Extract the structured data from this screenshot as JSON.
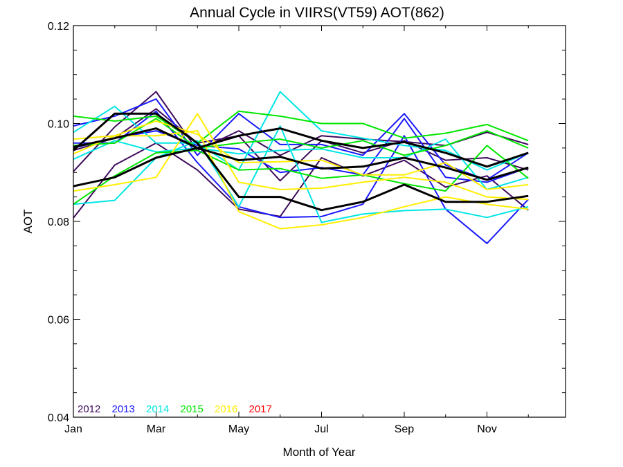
{
  "chart_data": {
    "type": "line",
    "title": "Annual Cycle in VIIRS(VT59) AOT(862)",
    "xlabel": "Month of Year",
    "ylabel": "AOT",
    "x": [
      1,
      2,
      3,
      4,
      5,
      6,
      7,
      8,
      9,
      10,
      11,
      12
    ],
    "xlim": [
      1,
      12.9
    ],
    "ylim": [
      0.04,
      0.12
    ],
    "xticks": [
      {
        "value": 1,
        "label": "Jan"
      },
      {
        "value": 3,
        "label": "Mar"
      },
      {
        "value": 5,
        "label": "May"
      },
      {
        "value": 7,
        "label": "Jul"
      },
      {
        "value": 9,
        "label": "Sep"
      },
      {
        "value": 11,
        "label": "Nov"
      }
    ],
    "yticks": [
      {
        "value": 0.04,
        "label": "0.04"
      },
      {
        "value": 0.06,
        "label": "0.06"
      },
      {
        "value": 0.08,
        "label": "0.08"
      },
      {
        "value": 0.1,
        "label": "0.10"
      },
      {
        "value": 0.12,
        "label": "0.12"
      }
    ],
    "grid": false,
    "legend_position": "bottom-left",
    "legend": [
      {
        "label": "2012",
        "color": "#3d0a5c"
      },
      {
        "label": "2013",
        "color": "#1a1aff"
      },
      {
        "label": "2014",
        "color": "#00e5e5"
      },
      {
        "label": "2015",
        "color": "#00e600"
      },
      {
        "label": "2016",
        "color": "#ffee00"
      },
      {
        "label": "2017",
        "color": "#ff0000"
      }
    ],
    "series": [
      {
        "color": "#3d0a5c",
        "values": [
          0.0902,
          0.0993,
          0.1065,
          0.0945,
          0.0985,
          0.0935,
          0.0975,
          0.0968,
          0.0963,
          0.0955,
          0.0982,
          0.0957
        ]
      },
      {
        "color": "#3d0a5c",
        "values": [
          0.0807,
          0.0915,
          0.096,
          0.0905,
          0.0825,
          0.081,
          0.093,
          0.0893,
          0.0925,
          0.087,
          0.0893,
          0.0823
        ]
      },
      {
        "color": "#3d0a5c",
        "values": [
          0.0945,
          0.097,
          0.103,
          0.096,
          0.0975,
          0.0883,
          0.0965,
          0.094,
          0.0965,
          0.0925,
          0.093,
          0.0905
        ]
      },
      {
        "color": "#1a1aff",
        "values": [
          0.0995,
          0.1015,
          0.105,
          0.0935,
          0.102,
          0.0957,
          0.0957,
          0.0935,
          0.102,
          0.0915,
          0.0885,
          0.094
        ]
      },
      {
        "color": "#1a1aff",
        "values": [
          0.096,
          0.096,
          0.1025,
          0.092,
          0.083,
          0.0808,
          0.081,
          0.0835,
          0.0975,
          0.0825,
          0.0755,
          0.0845
        ]
      },
      {
        "color": "#1a1aff",
        "values": [
          0.095,
          0.097,
          0.0985,
          0.0955,
          0.0948,
          0.09,
          0.091,
          0.0895,
          0.101,
          0.089,
          0.088,
          0.091
        ]
      },
      {
        "color": "#00e5e5",
        "values": [
          0.0982,
          0.1035,
          0.096,
          0.096,
          0.0905,
          0.1065,
          0.0985,
          0.097,
          0.0955,
          0.0945,
          0.0905,
          0.094
        ]
      },
      {
        "color": "#00e5e5",
        "values": [
          0.0835,
          0.0843,
          0.093,
          0.0965,
          0.083,
          0.0995,
          0.0798,
          0.0815,
          0.0822,
          0.0825,
          0.0808,
          0.083
        ]
      },
      {
        "color": "#00e5e5",
        "values": [
          0.0927,
          0.0965,
          0.0942,
          0.095,
          0.0938,
          0.0945,
          0.0948,
          0.093,
          0.093,
          0.0968,
          0.0865,
          0.089
        ]
      },
      {
        "color": "#00e600",
        "values": [
          0.1015,
          0.1005,
          0.1015,
          0.096,
          0.1025,
          0.1015,
          0.1,
          0.1,
          0.097,
          0.098,
          0.0998,
          0.0965
        ]
      },
      {
        "color": "#00e600",
        "values": [
          0.0835,
          0.0893,
          0.094,
          0.0945,
          0.0905,
          0.0908,
          0.0888,
          0.0895,
          0.0877,
          0.0862,
          0.0955,
          0.0888
        ]
      },
      {
        "color": "#00e600",
        "values": [
          0.0955,
          0.096,
          0.101,
          0.095,
          0.096,
          0.0968,
          0.095,
          0.0965,
          0.0935,
          0.0955,
          0.0985,
          0.095
        ]
      },
      {
        "color": "#ffee00",
        "values": [
          0.0938,
          0.0975,
          0.1005,
          0.0978,
          0.092,
          0.0922,
          0.0925,
          0.0895,
          0.0895,
          0.092,
          0.0865,
          0.0875
        ]
      },
      {
        "color": "#ffee00",
        "values": [
          0.0862,
          0.0875,
          0.089,
          0.102,
          0.088,
          0.0865,
          0.0868,
          0.088,
          0.089,
          0.088,
          0.085,
          0.0845
        ]
      },
      {
        "color": "#ffee00",
        "values": [
          0.0968,
          0.0975,
          0.0975,
          0.0985,
          0.082,
          0.0785,
          0.0793,
          0.0808,
          0.083,
          0.085,
          0.0835,
          0.0825
        ]
      },
      {
        "color": "#000000",
        "width": 3,
        "values": [
          0.0952,
          0.097,
          0.099,
          0.095,
          0.0975,
          0.099,
          0.0965,
          0.095,
          0.0962,
          0.094,
          0.0912,
          0.094
        ]
      },
      {
        "color": "#000000",
        "width": 3,
        "values": [
          0.0872,
          0.089,
          0.093,
          0.095,
          0.0925,
          0.0932,
          0.0908,
          0.0912,
          0.093,
          0.091,
          0.0885,
          0.091
        ]
      },
      {
        "color": "#000000",
        "width": 3,
        "values": [
          0.0945,
          0.102,
          0.102,
          0.096,
          0.085,
          0.085,
          0.0823,
          0.084,
          0.0875,
          0.084,
          0.084,
          0.0852
        ]
      }
    ]
  }
}
